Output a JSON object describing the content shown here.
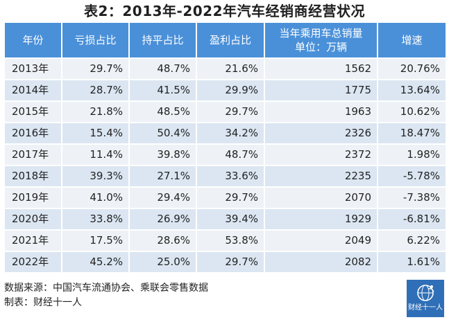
{
  "title": "表2：2013年-2022年汽车经销商经营状况",
  "table": {
    "headers": {
      "year": "年份",
      "loss": "亏损占比",
      "breakeven": "持平占比",
      "profit": "盈利占比",
      "sales_line1": "当年乘用车总销量",
      "sales_line2": "单位：万辆",
      "growth": "增速"
    },
    "rows": [
      {
        "year": "2013年",
        "loss": "29.7%",
        "breakeven": "48.7%",
        "profit": "21.6%",
        "sales": "1562",
        "growth": "20.76%"
      },
      {
        "year": "2014年",
        "loss": "28.7%",
        "breakeven": "41.5%",
        "profit": "29.9%",
        "sales": "1775",
        "growth": "13.64%"
      },
      {
        "year": "2015年",
        "loss": "21.8%",
        "breakeven": "48.5%",
        "profit": "29.7%",
        "sales": "1963",
        "growth": "10.62%"
      },
      {
        "year": "2016年",
        "loss": "15.4%",
        "breakeven": "50.4%",
        "profit": "34.2%",
        "sales": "2326",
        "growth": "18.47%"
      },
      {
        "year": "2017年",
        "loss": "11.4%",
        "breakeven": "39.8%",
        "profit": "48.7%",
        "sales": "2372",
        "growth": "1.98%"
      },
      {
        "year": "2018年",
        "loss": "39.3%",
        "breakeven": "27.1%",
        "profit": "33.6%",
        "sales": "2235",
        "growth": "-5.78%"
      },
      {
        "year": "2019年",
        "loss": "41.0%",
        "breakeven": "29.4%",
        "profit": "29.7%",
        "sales": "2070",
        "growth": "-7.38%"
      },
      {
        "year": "2020年",
        "loss": "33.8%",
        "breakeven": "26.9%",
        "profit": "39.4%",
        "sales": "1929",
        "growth": "-6.81%"
      },
      {
        "year": "2021年",
        "loss": "17.5%",
        "breakeven": "28.6%",
        "profit": "53.8%",
        "sales": "2049",
        "growth": "6.22%"
      },
      {
        "year": "2022年",
        "loss": "45.2%",
        "breakeven": "25.0%",
        "profit": "29.7%",
        "sales": "2082",
        "growth": "1.61%"
      }
    ]
  },
  "footer": {
    "source": "数据来源：中国汽车流通协会、乘联会零售数据",
    "maker": "制表：财经十一人"
  },
  "logo": {
    "text": "财经十一人",
    "icon": "globe-runner-icon"
  },
  "colors": {
    "header_bg": "#4a90d9",
    "row_light": "#eef2f6",
    "row_dark": "#dbe6f2",
    "logo_bg": "#2f6fb7"
  }
}
